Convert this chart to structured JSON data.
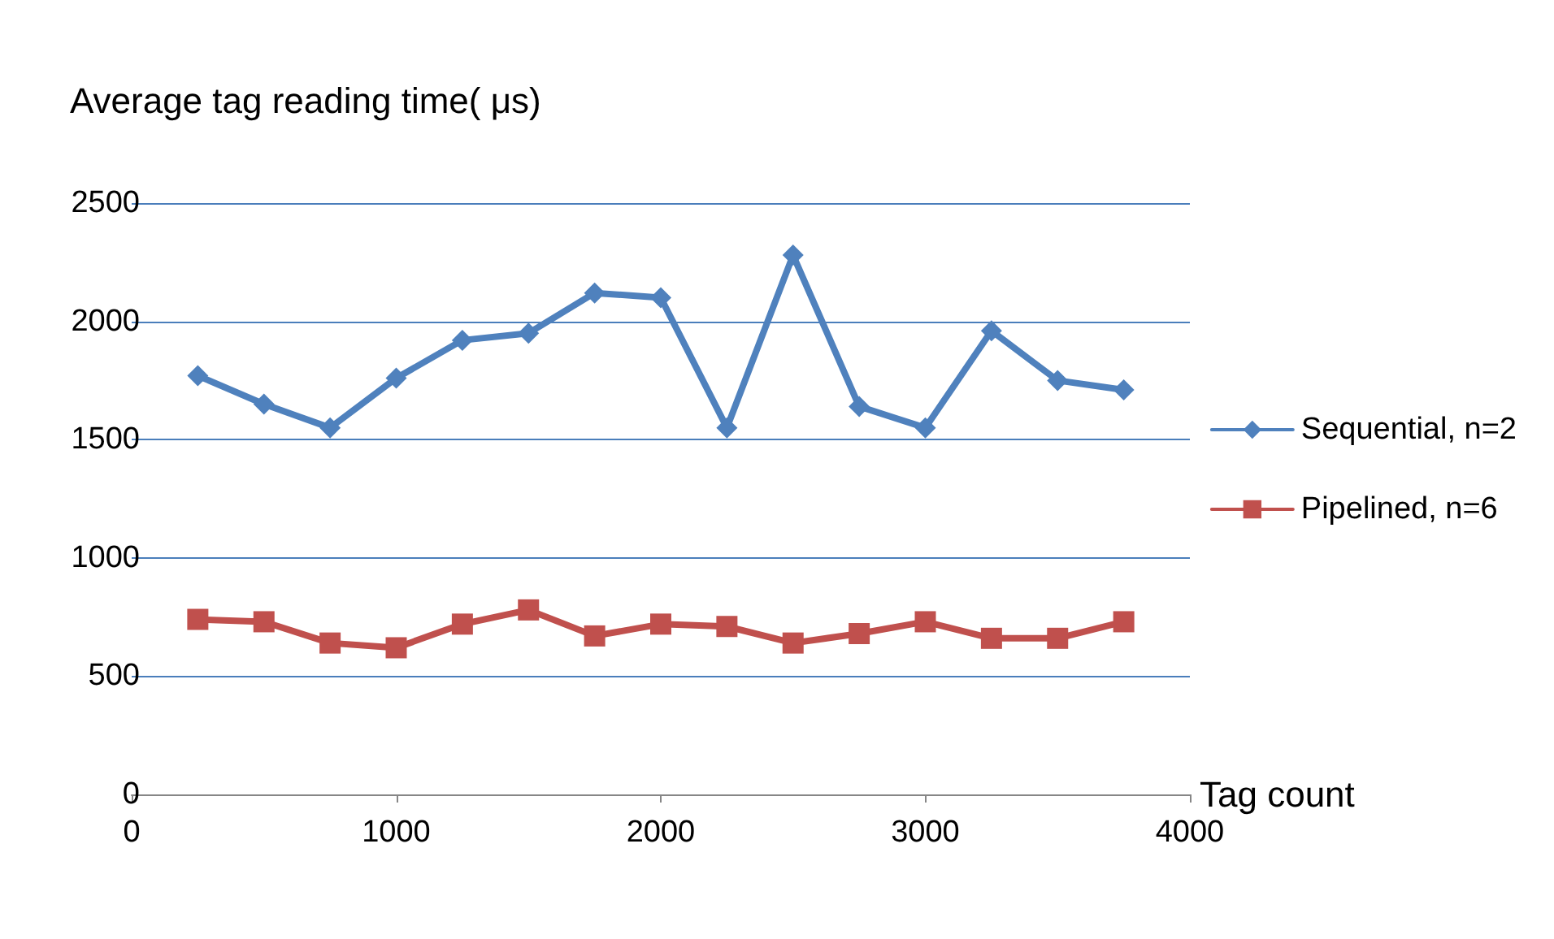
{
  "chart_data": {
    "type": "line",
    "ylabel": "Average tag reading time( μs)",
    "xlabel": "Tag count",
    "x": [
      250,
      500,
      750,
      1000,
      1250,
      1500,
      1750,
      2000,
      2250,
      2500,
      2750,
      3000,
      3250,
      3500,
      3750
    ],
    "series": [
      {
        "name": "Sequential, n=2",
        "color": "#4f81bd",
        "marker": "diamond",
        "values": [
          1770,
          1650,
          1550,
          1760,
          1920,
          1950,
          2120,
          2100,
          1550,
          2280,
          1640,
          1550,
          1960,
          1750,
          1710
        ]
      },
      {
        "name": "Pipelined, n=6",
        "color": "#c0504d",
        "marker": "square",
        "values": [
          740,
          730,
          640,
          620,
          720,
          780,
          670,
          720,
          710,
          640,
          680,
          730,
          660,
          660,
          730
        ]
      }
    ],
    "xlim": [
      0,
      4000
    ],
    "xticks": [
      0,
      1000,
      2000,
      3000,
      4000
    ],
    "ylim": [
      0,
      2500
    ],
    "yticks": [
      0,
      500,
      1000,
      1500,
      2000,
      2500
    ],
    "grid": "y",
    "legend": "right",
    "line_style": "solid"
  }
}
